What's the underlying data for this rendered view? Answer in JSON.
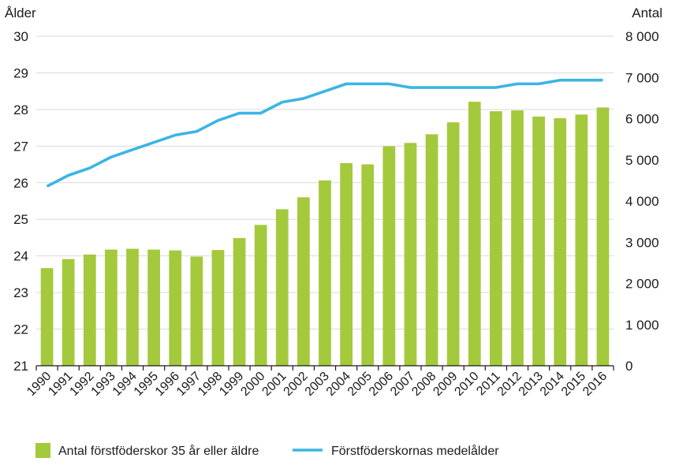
{
  "chart_data": {
    "type": "bar",
    "title": "",
    "y_left_label": "Ålder",
    "y_right_label": "Antal",
    "categories": [
      "1990",
      "1991",
      "1992",
      "1993",
      "1994",
      "1995",
      "1996",
      "1997",
      "1998",
      "1999",
      "2000",
      "2001",
      "2002",
      "2003",
      "2004",
      "2005",
      "2006",
      "2007",
      "2008",
      "2009",
      "2010",
      "2011",
      "2012",
      "2013",
      "2014",
      "2015",
      "2016"
    ],
    "y_left_lim": [
      21,
      30
    ],
    "y_left_ticks": [
      "21",
      "22",
      "23",
      "24",
      "25",
      "26",
      "27",
      "28",
      "29",
      "30"
    ],
    "y_right_lim": [
      0,
      8000
    ],
    "y_right_ticks": [
      "0",
      "1 000",
      "2 000",
      "3 000",
      "4 000",
      "5 000",
      "6 000",
      "7 000",
      "8 000"
    ],
    "grid": true,
    "legend_position": "bottom",
    "series": [
      {
        "name": "Antal förstföderskor 35 år eller äldre",
        "type": "bar",
        "axis": "right",
        "color": "#a4c93c",
        "values": [
          2370,
          2590,
          2700,
          2820,
          2840,
          2820,
          2800,
          2650,
          2810,
          3100,
          3420,
          3800,
          4090,
          4500,
          4920,
          4890,
          5330,
          5410,
          5620,
          5910,
          6410,
          6180,
          6200,
          6050,
          6010,
          6100,
          6270
        ]
      },
      {
        "name": "Förstföderskornas medelålder",
        "type": "line",
        "axis": "left",
        "color": "#3cb4e5",
        "values": [
          25.9,
          26.2,
          26.4,
          26.7,
          26.9,
          27.1,
          27.3,
          27.4,
          27.7,
          27.9,
          27.9,
          28.2,
          28.3,
          28.5,
          28.7,
          28.7,
          28.7,
          28.6,
          28.6,
          28.6,
          28.6,
          28.6,
          28.7,
          28.7,
          28.8,
          28.8,
          28.8
        ]
      }
    ]
  }
}
